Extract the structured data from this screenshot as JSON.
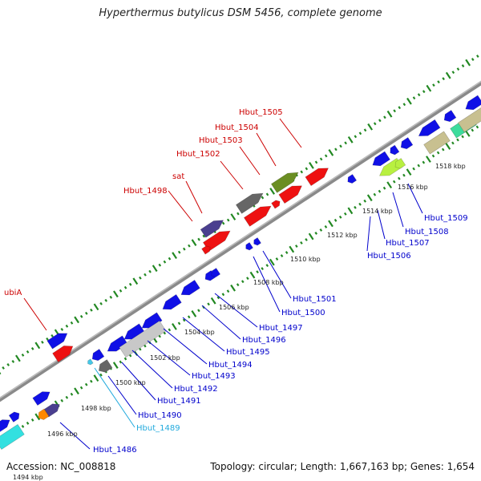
{
  "title": "Hyperthermus butylicus DSM 5456, complete genome",
  "accession": "Accession: NC_008818",
  "summary": "Topology: circular; Length: 1,667,163 bp; Genes: 1,654",
  "colors": {
    "forward_label": "#cc0000",
    "reverse_label": "#0000cc",
    "tick": "#228822",
    "backbone": "#888888"
  },
  "kbp_labels": [
    "1494 kbp",
    "1496 kbp",
    "1498 kbp",
    "1500 kbp",
    "1502 kbp",
    "1504 kbp",
    "1506 kbp",
    "1508 kbp",
    "1510 kbp",
    "1512 kbp",
    "1514 kbp",
    "1516 kbp",
    "1518 kbp"
  ],
  "forward_labels": [
    "ubiA",
    "Hbut_1498",
    "sat",
    "Hbut_1502",
    "Hbut_1503",
    "Hbut_1504",
    "Hbut_1505"
  ],
  "reverse_labels": [
    "Hbut_1486",
    "Hbut_1489",
    "Hbut_1490",
    "Hbut_1491",
    "Hbut_1492",
    "Hbut_1493",
    "Hbut_1494",
    "Hbut_1495",
    "Hbut_1496",
    "Hbut_1497",
    "Hbut_1500",
    "Hbut_1501",
    "Hbut_1506",
    "Hbut_1507",
    "Hbut_1508",
    "Hbut_1509"
  ]
}
